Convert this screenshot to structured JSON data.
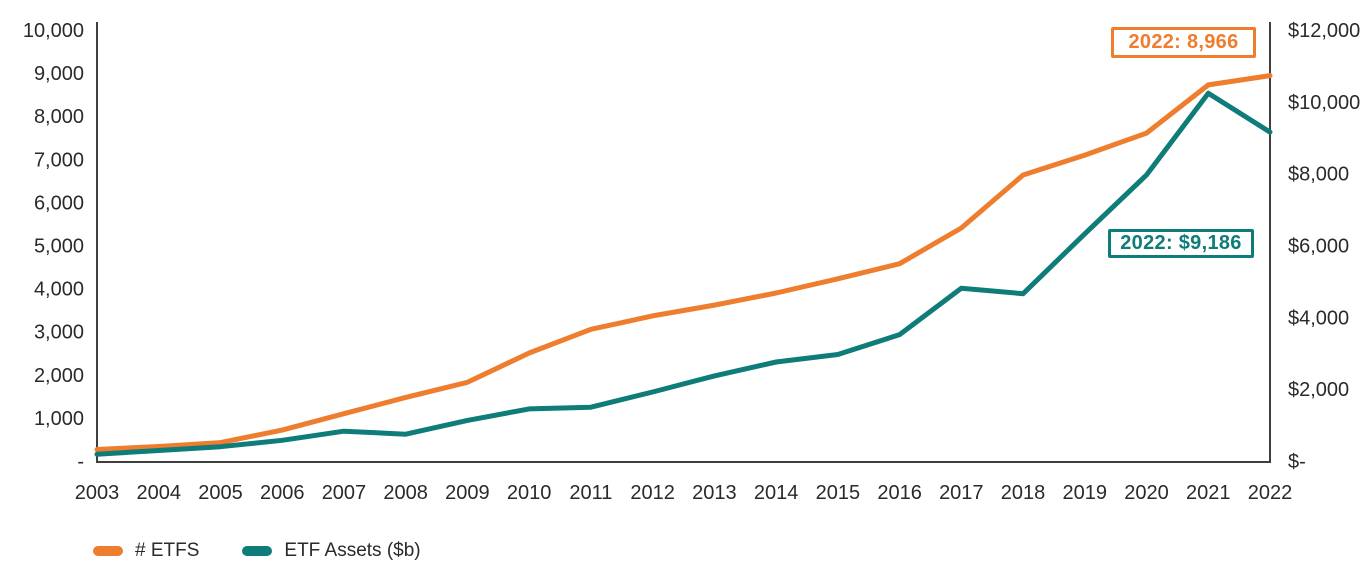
{
  "chart_data": {
    "type": "line",
    "title": "",
    "x": [
      "2003",
      "2004",
      "2005",
      "2006",
      "2007",
      "2008",
      "2009",
      "2010",
      "2011",
      "2012",
      "2013",
      "2014",
      "2015",
      "2016",
      "2017",
      "2018",
      "2019",
      "2020",
      "2021",
      "2022"
    ],
    "series": [
      {
        "name": "# ETFS",
        "axis": "left",
        "color": "#ee7d2e",
        "values": [
          290,
          360,
          450,
          740,
          1120,
          1500,
          1850,
          2530,
          3080,
          3390,
          3640,
          3920,
          4250,
          4600,
          5430,
          6660,
          7120,
          7630,
          8750,
          8966
        ]
      },
      {
        "name": "ETF Assets ($b)",
        "axis": "right",
        "color": "#0e7c78",
        "values": [
          218,
          319,
          426,
          603,
          857,
          774,
          1158,
          1478,
          1526,
          1949,
          2398,
          2784,
          2993,
          3546,
          4835,
          4685,
          6354,
          7990,
          10269,
          9186
        ]
      }
    ],
    "left_axis": {
      "min": 0,
      "max": 10000,
      "tick_step": 1000,
      "labels": [
        "10,000",
        "9,000",
        "8,000",
        "7,000",
        "6,000",
        "5,000",
        "4,000",
        "3,000",
        "2,000",
        "1,000",
        "-"
      ]
    },
    "right_axis": {
      "min": 0,
      "max": 12000,
      "tick_step": 2000,
      "labels": [
        "$12,000",
        "$10,000",
        "$8,000",
        "$6,000",
        "$4,000",
        "$2,000",
        "$-"
      ]
    },
    "annotations": [
      {
        "text": "2022: 8,966",
        "series": "# ETFS",
        "x": "2022",
        "value": 8966
      },
      {
        "text": "2022: $9,186",
        "series": "ETF Assets ($b)",
        "x": "2022",
        "value": 9186
      }
    ],
    "legend_position": "bottom-left",
    "grid": false
  },
  "colors": {
    "orange": "#ee7d2e",
    "teal": "#0e7c78",
    "axis": "#3f3f3f",
    "text": "#2a2a2a",
    "background": "#ffffff"
  }
}
